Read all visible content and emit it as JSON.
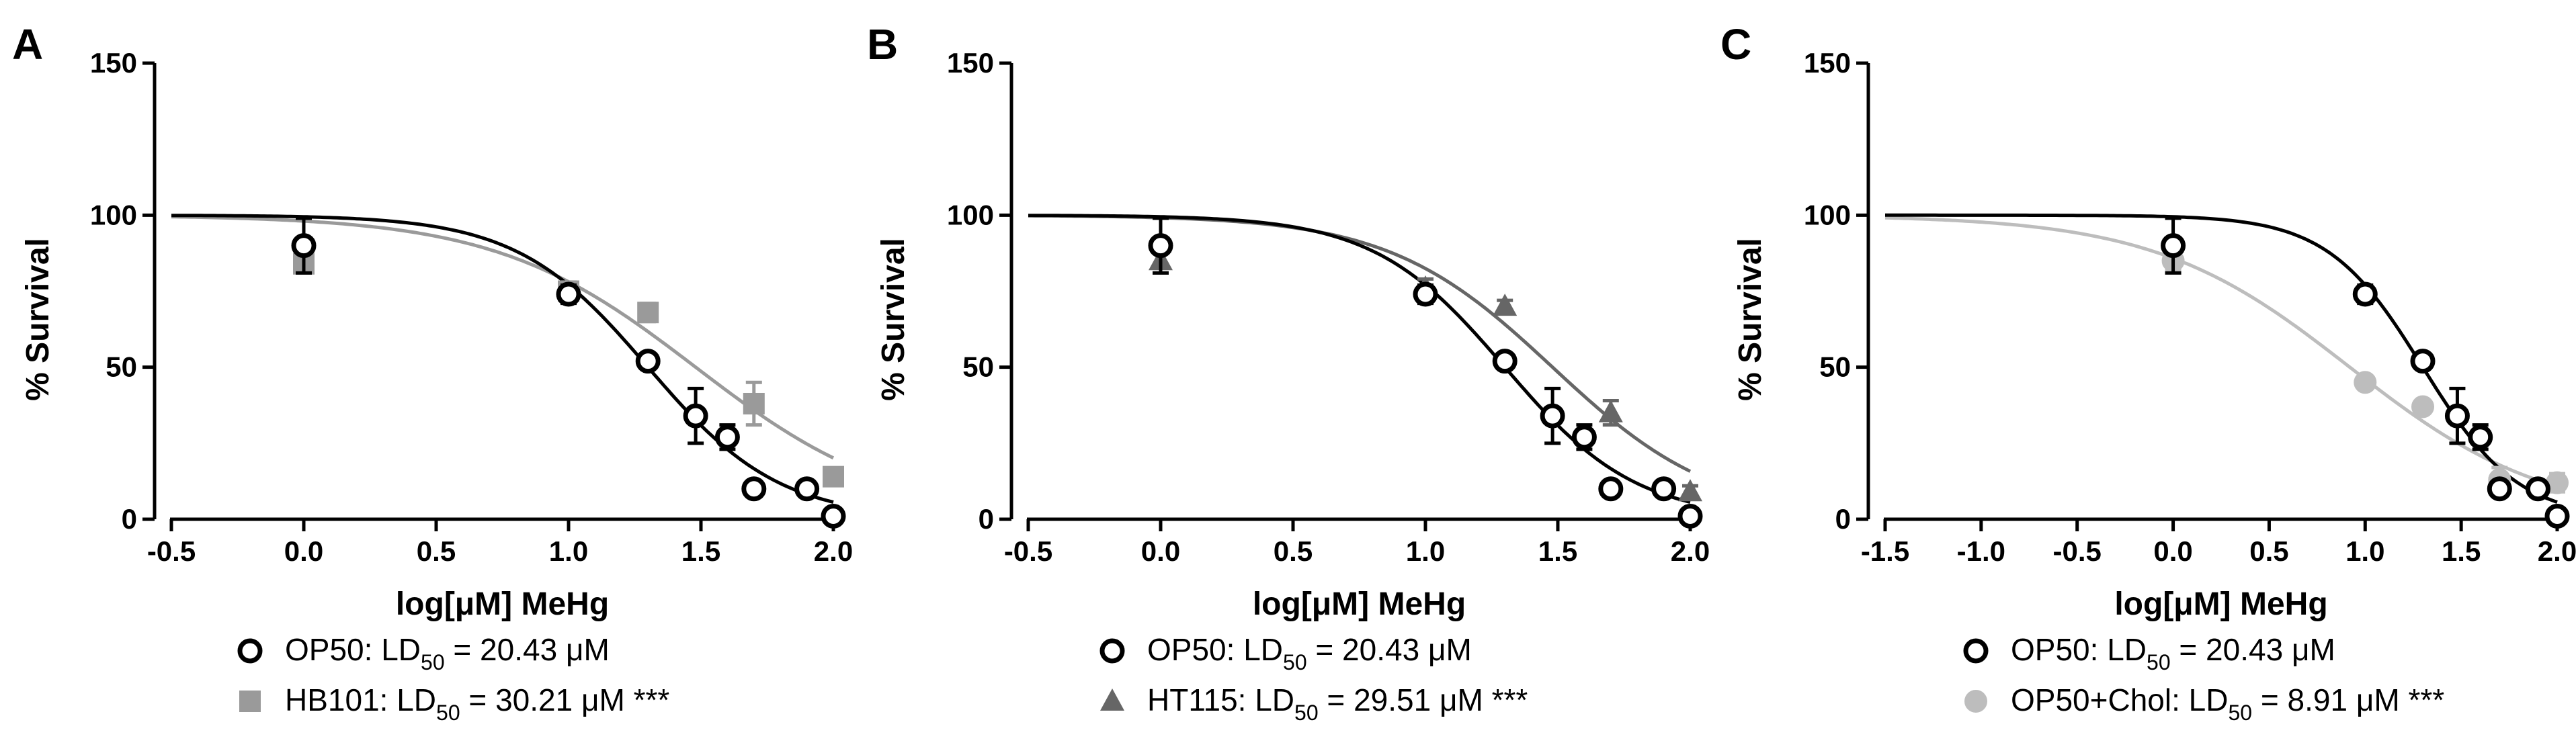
{
  "chart_data": [
    {
      "type": "scatter",
      "panel_label": "A",
      "xlabel": "log[μM] MeHg",
      "ylabel": "% Survival",
      "xlim": [
        -0.5,
        2.0
      ],
      "ylim": [
        0,
        150
      ],
      "x_ticks": [
        "-0.5",
        "0.0",
        "0.5",
        "1.0",
        "1.5",
        "2.0"
      ],
      "y_ticks": [
        "0",
        "50",
        "100",
        "150"
      ],
      "grid": false,
      "legend_position": "bottom",
      "series": [
        {
          "name": "OP50",
          "ld50": "20.43",
          "significance": "",
          "color": "#000000",
          "marker": "open-circle",
          "points": [
            {
              "x": 0.0,
              "y": 90,
              "err": 9
            },
            {
              "x": 1.0,
              "y": 74,
              "err": 3
            },
            {
              "x": 1.3,
              "y": 52,
              "err": 2
            },
            {
              "x": 1.48,
              "y": 34,
              "err": 9
            },
            {
              "x": 1.6,
              "y": 27,
              "err": 4
            },
            {
              "x": 1.7,
              "y": 10,
              "err": 0
            },
            {
              "x": 1.9,
              "y": 10,
              "err": 0
            },
            {
              "x": 2.0,
              "y": 1,
              "err": 0
            }
          ]
        },
        {
          "name": "HB101",
          "ld50": "30.21",
          "significance": "***",
          "color": "#9a9a9a",
          "marker": "square",
          "points": [
            {
              "x": 0.0,
              "y": 84,
              "err": 3
            },
            {
              "x": 1.0,
              "y": 75,
              "err": 3
            },
            {
              "x": 1.3,
              "y": 68,
              "err": 3
            },
            {
              "x": 1.7,
              "y": 38,
              "err": 7
            },
            {
              "x": 2.0,
              "y": 14,
              "err": 2
            }
          ]
        }
      ]
    },
    {
      "type": "scatter",
      "panel_label": "B",
      "xlabel": "log[μM] MeHg",
      "ylabel": "% Survival",
      "xlim": [
        -0.5,
        2.0
      ],
      "ylim": [
        0,
        150
      ],
      "x_ticks": [
        "-0.5",
        "0.0",
        "0.5",
        "1.0",
        "1.5",
        "2.0"
      ],
      "y_ticks": [
        "0",
        "50",
        "100",
        "150"
      ],
      "grid": false,
      "legend_position": "bottom",
      "series": [
        {
          "name": "OP50",
          "ld50": "20.43",
          "significance": "",
          "color": "#000000",
          "marker": "open-circle",
          "points": [
            {
              "x": 0.0,
              "y": 90,
              "err": 9
            },
            {
              "x": 1.0,
              "y": 74,
              "err": 3
            },
            {
              "x": 1.3,
              "y": 52,
              "err": 2
            },
            {
              "x": 1.48,
              "y": 34,
              "err": 9
            },
            {
              "x": 1.6,
              "y": 27,
              "err": 4
            },
            {
              "x": 1.7,
              "y": 10,
              "err": 0
            },
            {
              "x": 1.9,
              "y": 10,
              "err": 0
            },
            {
              "x": 2.0,
              "y": 1,
              "err": 0
            }
          ]
        },
        {
          "name": "HT115",
          "ld50": "29.51",
          "significance": "***",
          "color": "#666666",
          "marker": "triangle",
          "points": [
            {
              "x": 0.0,
              "y": 85,
              "err": 4
            },
            {
              "x": 1.0,
              "y": 76,
              "err": 3
            },
            {
              "x": 1.3,
              "y": 70,
              "err": 2
            },
            {
              "x": 1.7,
              "y": 35,
              "err": 4
            },
            {
              "x": 2.0,
              "y": 9,
              "err": 2
            }
          ]
        }
      ]
    },
    {
      "type": "scatter",
      "panel_label": "C",
      "xlabel": "log[μM] MeHg",
      "ylabel": "% Survival",
      "xlim": [
        -1.5,
        2.0
      ],
      "ylim": [
        0,
        150
      ],
      "x_ticks": [
        "-1.5",
        "-1.0",
        "-0.5",
        "0.0",
        "0.5",
        "1.0",
        "1.5",
        "2.0"
      ],
      "y_ticks": [
        "0",
        "50",
        "100",
        "150"
      ],
      "grid": false,
      "legend_position": "bottom",
      "series": [
        {
          "name": "OP50",
          "ld50": "20.43",
          "significance": "",
          "color": "#000000",
          "marker": "open-circle",
          "points": [
            {
              "x": 0.0,
              "y": 90,
              "err": 9
            },
            {
              "x": 1.0,
              "y": 74,
              "err": 3
            },
            {
              "x": 1.3,
              "y": 52,
              "err": 2
            },
            {
              "x": 1.48,
              "y": 34,
              "err": 9
            },
            {
              "x": 1.6,
              "y": 27,
              "err": 4
            },
            {
              "x": 1.7,
              "y": 10,
              "err": 0
            },
            {
              "x": 1.9,
              "y": 10,
              "err": 0
            },
            {
              "x": 2.0,
              "y": 1,
              "err": 0
            }
          ]
        },
        {
          "name": "OP50+Chol",
          "ld50": "8.91",
          "significance": "***",
          "color": "#bdbdbd",
          "marker": "filled-circle",
          "points": [
            {
              "x": 0.0,
              "y": 85,
              "err": 3
            },
            {
              "x": 1.0,
              "y": 45,
              "err": 2
            },
            {
              "x": 1.3,
              "y": 37,
              "err": 2
            },
            {
              "x": 1.7,
              "y": 13,
              "err": 4
            },
            {
              "x": 2.0,
              "y": 12,
              "err": 3
            }
          ]
        }
      ]
    }
  ]
}
